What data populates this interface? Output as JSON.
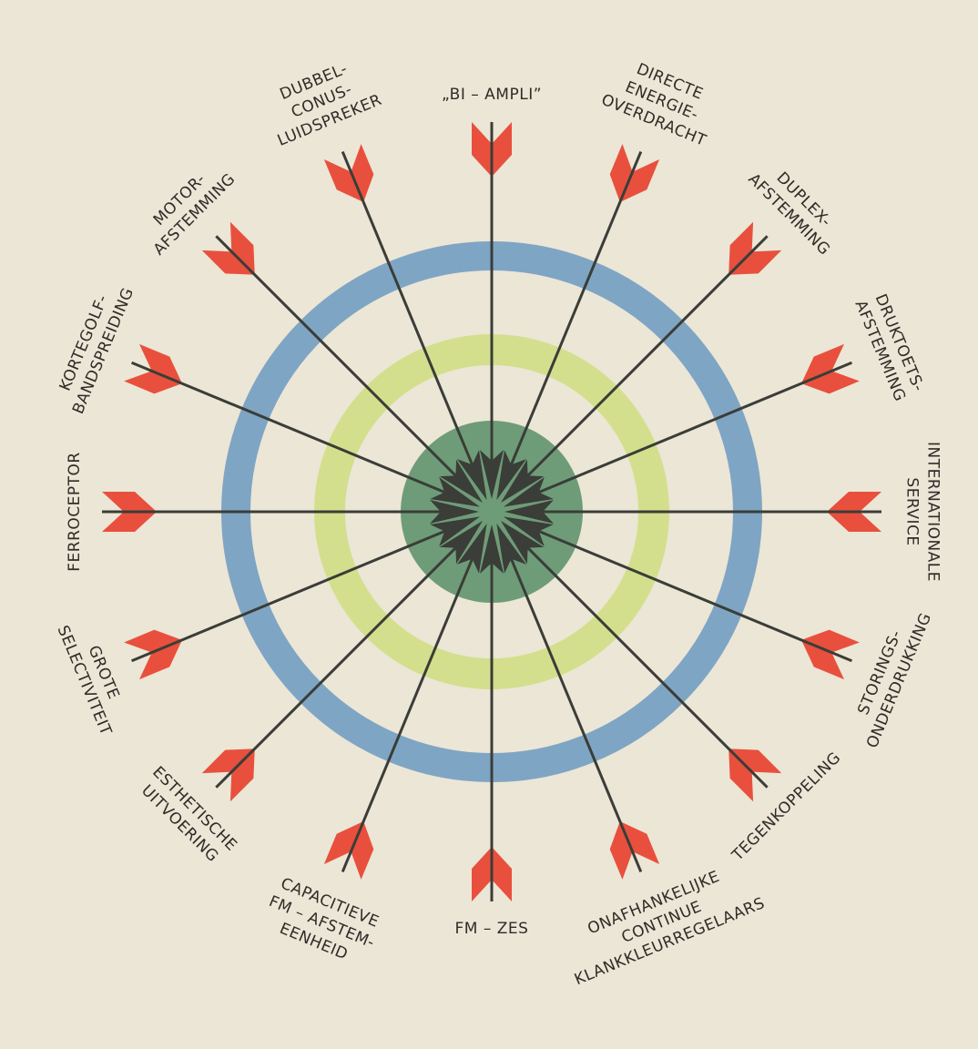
{
  "labels": [
    {
      "lines": [
        "„BI – AMPLI”"
      ]
    },
    {
      "lines": [
        "DIRECTE",
        "ENERGIE-",
        "OVERDRACHT"
      ]
    },
    {
      "lines": [
        "DUPLEX-",
        "AFSTEMMING"
      ]
    },
    {
      "lines": [
        "DRUKTOETS-",
        "AFSTEMMING"
      ]
    },
    {
      "lines": [
        "INTERNATIONALE",
        "SERVICE"
      ]
    },
    {
      "lines": [
        "STORINGS-",
        "ONDERDRUKKING"
      ]
    },
    {
      "lines": [
        "TEGENKOPPELING"
      ]
    },
    {
      "lines": [
        "ONAFHANKELIJKE",
        "CONTINUE",
        "KLANKKLEURREGELAARS"
      ]
    },
    {
      "lines": [
        "FM – ZES"
      ]
    },
    {
      "lines": [
        "CAPACITIEVE",
        "FM – AFSTEM-",
        "EENHEID"
      ]
    },
    {
      "lines": [
        "ESTHETISCHE",
        "UITVOERING"
      ]
    },
    {
      "lines": [
        "GROTE",
        "SELECTIVITEIT"
      ]
    },
    {
      "lines": [
        "FERROCEPTOR"
      ]
    },
    {
      "lines": [
        "KORTEGOLF-",
        "BANDSPREIDING"
      ]
    },
    {
      "lines": [
        "MOTOR-",
        "AFSTEMMING"
      ]
    },
    {
      "lines": [
        "DUBBEL-",
        "CONUS-",
        "LUIDSPREKER"
      ]
    }
  ]
}
